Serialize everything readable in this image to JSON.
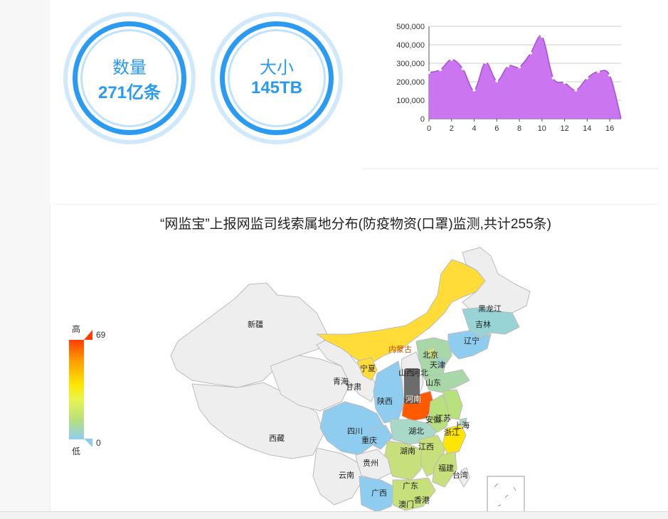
{
  "stats": [
    {
      "label": "数量",
      "value": "271亿条"
    },
    {
      "label": "大小",
      "value": "145TB"
    }
  ],
  "chart_data": {
    "type": "area",
    "x": [
      0,
      1,
      2,
      3,
      4,
      5,
      6,
      7,
      8,
      9,
      10,
      11,
      12,
      13,
      14,
      15,
      16,
      17
    ],
    "values": [
      250000,
      265000,
      320000,
      270000,
      155000,
      305000,
      205000,
      285000,
      280000,
      355000,
      445000,
      220000,
      195000,
      155000,
      220000,
      255000,
      235000,
      0
    ],
    "xticks": [
      0,
      2,
      4,
      6,
      8,
      10,
      12,
      14,
      16
    ],
    "yticks": [
      "0",
      "100,000",
      "200,000",
      "300,000",
      "400,000",
      "500,000"
    ],
    "ylim": [
      0,
      500000
    ],
    "xlim": [
      0,
      17
    ],
    "color": "#c86ef0",
    "grid": true
  },
  "map": {
    "title": "“网监宝”上报网监司线索属地分布(防疫物资(口罩)监测,共计255条)",
    "legend": {
      "high": "高",
      "low": "低",
      "max": "69",
      "min": "0"
    },
    "regions": [
      "新疆",
      "西藏",
      "青海",
      "甘肃",
      "内蒙古",
      "宁夏",
      "黑龙江",
      "吉林",
      "辽宁",
      "北京",
      "天津",
      "河北",
      "山西",
      "山东",
      "河南",
      "陕西",
      "四川",
      "重庆",
      "湖北",
      "安徽",
      "江苏",
      "上海",
      "浙江",
      "江西",
      "湖南",
      "贵州",
      "云南",
      "广西",
      "广东",
      "福建",
      "台湾",
      "香港",
      "澳门"
    ]
  }
}
